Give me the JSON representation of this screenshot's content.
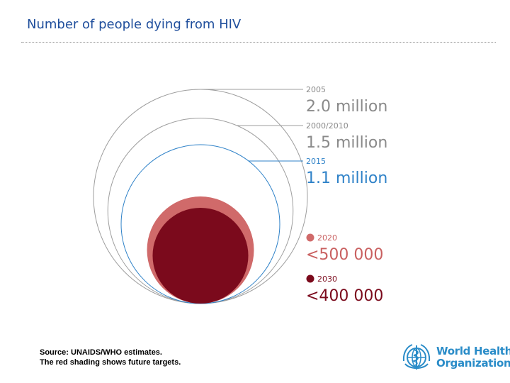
{
  "page": {
    "title": "Number of people dying from HIV",
    "source_line1": "Source: UNAIDS/WHO estimates.",
    "source_line2": "The red shading shows future targets."
  },
  "logo": {
    "line1": "World Health",
    "line2": "Organization",
    "icon": "who-emblem-icon",
    "color": "#2a8cc8"
  },
  "chart_data": {
    "type": "bubble",
    "title": "Number of people dying from HIV",
    "unit": "deaths",
    "series": [
      {
        "period": "2005",
        "label": "2.0 million",
        "value": 2000000,
        "style": "outline",
        "color": "#9e9e9e",
        "label_color": "#8a8a8a"
      },
      {
        "period": "2000/2010",
        "label": "1.5 million",
        "value": 1500000,
        "style": "outline",
        "color": "#9e9e9e",
        "label_color": "#8a8a8a"
      },
      {
        "period": "2015",
        "label": "1.1 million",
        "value": 1100000,
        "style": "outline",
        "color": "#2f82c8",
        "label_color": "#2f82c8"
      },
      {
        "period": "2020",
        "label": "<500 000",
        "value": 500000,
        "style": "filled",
        "color": "#d06a6a",
        "label_color": "#c96060",
        "target": true
      },
      {
        "period": "2030",
        "label": "<400 000",
        "value": 400000,
        "style": "filled",
        "color": "#7b0a1c",
        "label_color": "#7b0a1c",
        "target": true
      }
    ],
    "note": "The red shading shows future targets.",
    "source": "UNAIDS/WHO estimates."
  }
}
